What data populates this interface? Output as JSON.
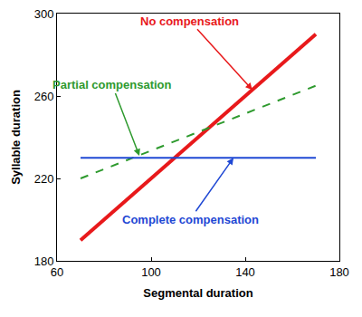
{
  "chart_data": {
    "type": "line",
    "x_label": "Segmental duration",
    "y_label": "Syllable duration",
    "xlim": [
      60,
      180
    ],
    "xticks": [
      60,
      100,
      140,
      180
    ],
    "ylim": [
      180,
      300
    ],
    "yticks": [
      180,
      220,
      260,
      300
    ],
    "grid": false,
    "series": [
      {
        "color": "#e8191b",
        "line_style": "solid",
        "x": [
          70,
          170
        ],
        "values": [
          190,
          290
        ]
      },
      {
        "color": "#2e9a2e",
        "line_style": "dash",
        "x": [
          70,
          170
        ],
        "values": [
          220,
          265
        ]
      },
      {
        "color": "#1f48d4",
        "line_style": "solid",
        "x": [
          70,
          170
        ],
        "values": [
          230,
          230
        ]
      }
    ],
    "annotations": [
      {
        "text": "No compensation",
        "x": 143,
        "y": 263,
        "color": "#e8191b"
      },
      {
        "text": "Partial compensation",
        "x": 95,
        "y": 231,
        "color": "#2e9a2e"
      },
      {
        "text": "Complete compensation",
        "x": 135,
        "y": 230,
        "color": "#1f48d4"
      }
    ]
  }
}
